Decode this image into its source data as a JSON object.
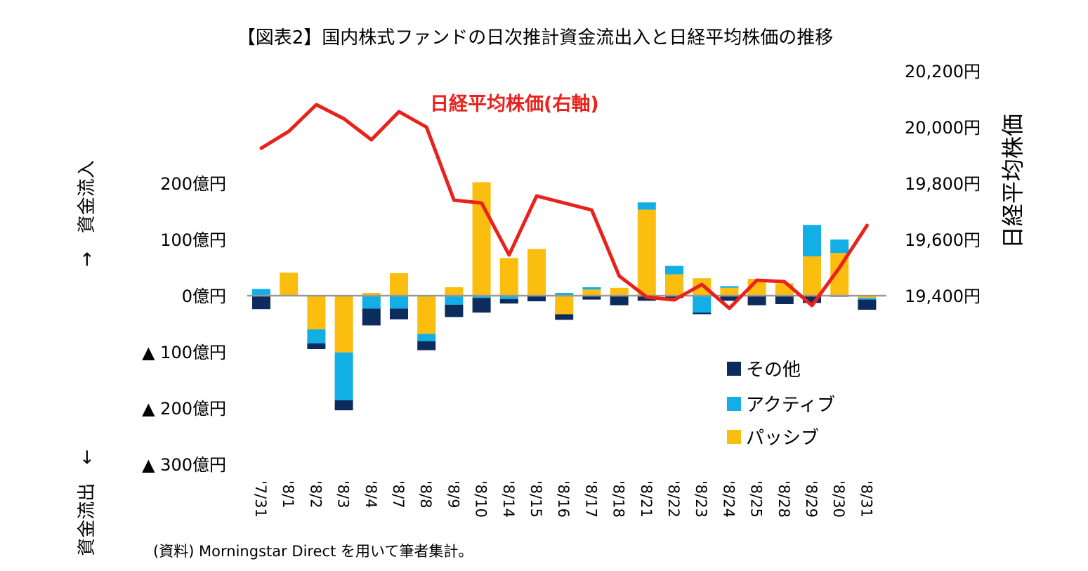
{
  "chart_data": {
    "type": "bar+line",
    "title": "【図表2】国内株式ファンドの日次推計資金流出入と日経平均株価の推移",
    "categories": [
      "'7/31",
      "'8/1",
      "'8/2",
      "'8/3",
      "'8/4",
      "'8/7",
      "'8/8",
      "'8/9",
      "'8/10",
      "'8/14",
      "'8/15",
      "'8/16",
      "'8/17",
      "'8/18",
      "'8/21",
      "'8/22",
      "'8/23",
      "'8/24",
      "'8/25",
      "'8/28",
      "'8/29",
      "'8/30",
      "'8/31"
    ],
    "left_axis": {
      "ticks": [
        {
          "value": 200,
          "label": "200億円"
        },
        {
          "value": 100,
          "label": "100億円"
        },
        {
          "value": 0,
          "label": "0億円"
        },
        {
          "value": -100,
          "label": "▲ 100億円"
        },
        {
          "value": -200,
          "label": "▲ 200億円"
        },
        {
          "value": -300,
          "label": "▲ 300億円"
        }
      ],
      "range": [
        -300,
        200
      ],
      "inflow_label": "→　資金流入",
      "outflow_label": "資金流出　←"
    },
    "right_axis": {
      "ticks": [
        {
          "value": 20200,
          "label": "20,200円"
        },
        {
          "value": 20000,
          "label": "20,000円"
        },
        {
          "value": 19800,
          "label": "19,800円"
        },
        {
          "value": 19600,
          "label": "19,600円"
        },
        {
          "value": 19400,
          "label": "19,400円"
        }
      ],
      "range": [
        18900,
        20200
      ],
      "label": "日経平均株価"
    },
    "series": [
      {
        "name": "その他",
        "color": "#0d2c5e",
        "type": "bar",
        "values": [
          -24,
          0,
          -10,
          -18,
          -30,
          -19,
          -16,
          -22,
          -26,
          -8,
          -10,
          -10,
          -7,
          -17,
          -9,
          -4,
          -3,
          -9,
          -17,
          -15,
          -13,
          -2,
          -18
        ]
      },
      {
        "name": "アクティブ",
        "color": "#12aee6",
        "type": "bar",
        "values": [
          12,
          0,
          -25,
          -85,
          -23,
          -23,
          -13,
          -16,
          -4,
          -6,
          0,
          5,
          4,
          0,
          13,
          15,
          -30,
          3,
          0,
          0,
          56,
          24,
          -3
        ]
      },
      {
        "name": "パッシブ",
        "color": "#fbbd0e",
        "type": "bar",
        "values": [
          0,
          41,
          -60,
          -101,
          5,
          40,
          -68,
          15,
          202,
          67,
          83,
          -33,
          11,
          14,
          153,
          38,
          31,
          14,
          30,
          22,
          70,
          76,
          -4
        ]
      },
      {
        "name": "日経平均株価",
        "color": "#e8221c",
        "type": "line",
        "axis": "right",
        "values": [
          19925,
          19985,
          20080,
          20030,
          19955,
          20055,
          20000,
          19740,
          19730,
          19545,
          19755,
          19730,
          19705,
          19470,
          19395,
          19385,
          19440,
          19355,
          19455,
          19450,
          19365,
          19500,
          19650
        ]
      }
    ],
    "line_label": "日経平均株価(右軸)",
    "legend_placement": "bottom-right",
    "grid": false
  },
  "source_note": "(資料) Morningstar Direct を用いて筆者集計。"
}
